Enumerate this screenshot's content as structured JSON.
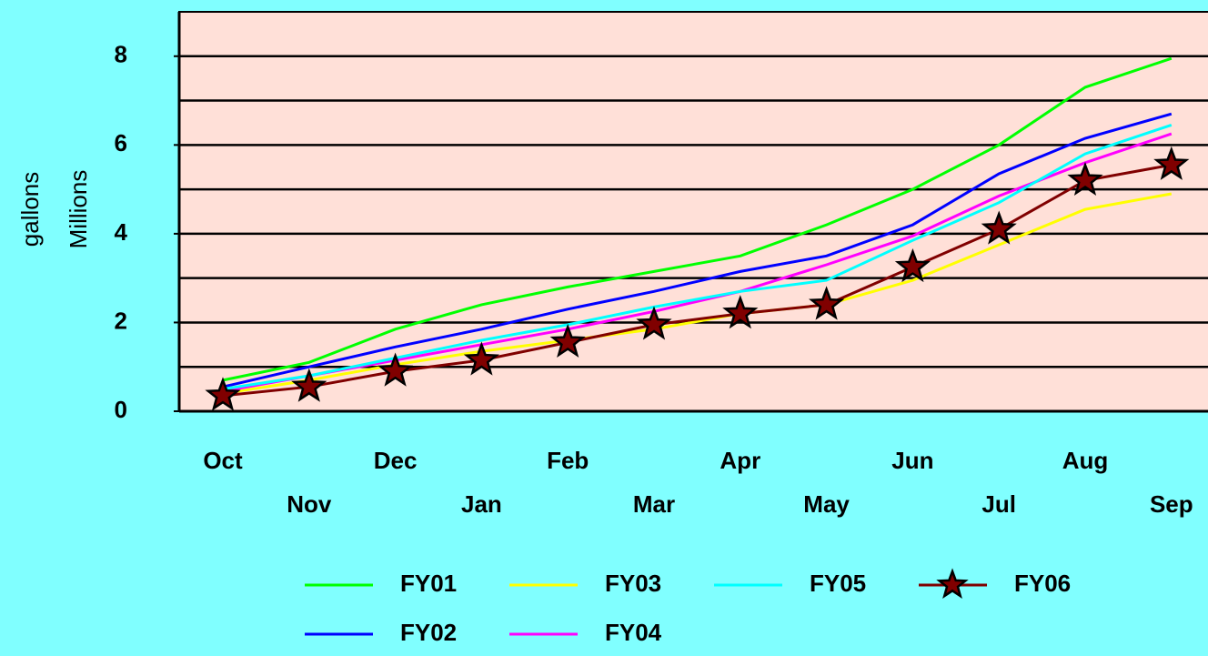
{
  "chart_data": {
    "type": "line",
    "y_label_lines": [
      "gallons",
      "Millions"
    ],
    "categories": [
      "Oct",
      "Nov",
      "Dec",
      "Jan",
      "Feb",
      "Mar",
      "Apr",
      "May",
      "Jun",
      "Jul",
      "Aug",
      "Sep"
    ],
    "series": [
      {
        "name": "FY01",
        "color": "#00ff00",
        "values": [
          0.7,
          1.1,
          1.85,
          2.4,
          2.8,
          3.15,
          3.5,
          4.2,
          5.0,
          6.0,
          7.3,
          7.95
        ]
      },
      {
        "name": "FY02",
        "color": "#0000ff",
        "values": [
          0.55,
          1.0,
          1.45,
          1.85,
          2.3,
          2.7,
          3.15,
          3.5,
          4.2,
          5.35,
          6.15,
          6.7
        ]
      },
      {
        "name": "FY03",
        "color": "#ffff00",
        "values": [
          0.4,
          0.7,
          1.05,
          1.35,
          1.6,
          1.85,
          2.2,
          2.4,
          2.95,
          3.75,
          4.55,
          4.9
        ]
      },
      {
        "name": "FY04",
        "color": "#ff00ff",
        "values": [
          0.45,
          0.8,
          1.15,
          1.5,
          1.85,
          2.25,
          2.7,
          3.3,
          3.95,
          4.85,
          5.6,
          6.25
        ]
      },
      {
        "name": "FY05",
        "color": "#00ffff",
        "values": [
          0.5,
          0.8,
          1.2,
          1.6,
          1.95,
          2.35,
          2.7,
          2.95,
          3.85,
          4.7,
          5.8,
          6.45
        ]
      },
      {
        "name": "FY06",
        "color": "#800000",
        "marker": "star",
        "values": [
          0.35,
          0.55,
          0.9,
          1.15,
          1.55,
          1.95,
          2.2,
          2.4,
          3.25,
          4.1,
          5.2,
          5.55
        ]
      }
    ],
    "ylim": [
      0,
      9
    ],
    "yticks": [
      0,
      2,
      4,
      6,
      8
    ],
    "minor_yticks": [
      1,
      3,
      5,
      7
    ],
    "grid": true,
    "plot_color": "#ffe0d8"
  }
}
